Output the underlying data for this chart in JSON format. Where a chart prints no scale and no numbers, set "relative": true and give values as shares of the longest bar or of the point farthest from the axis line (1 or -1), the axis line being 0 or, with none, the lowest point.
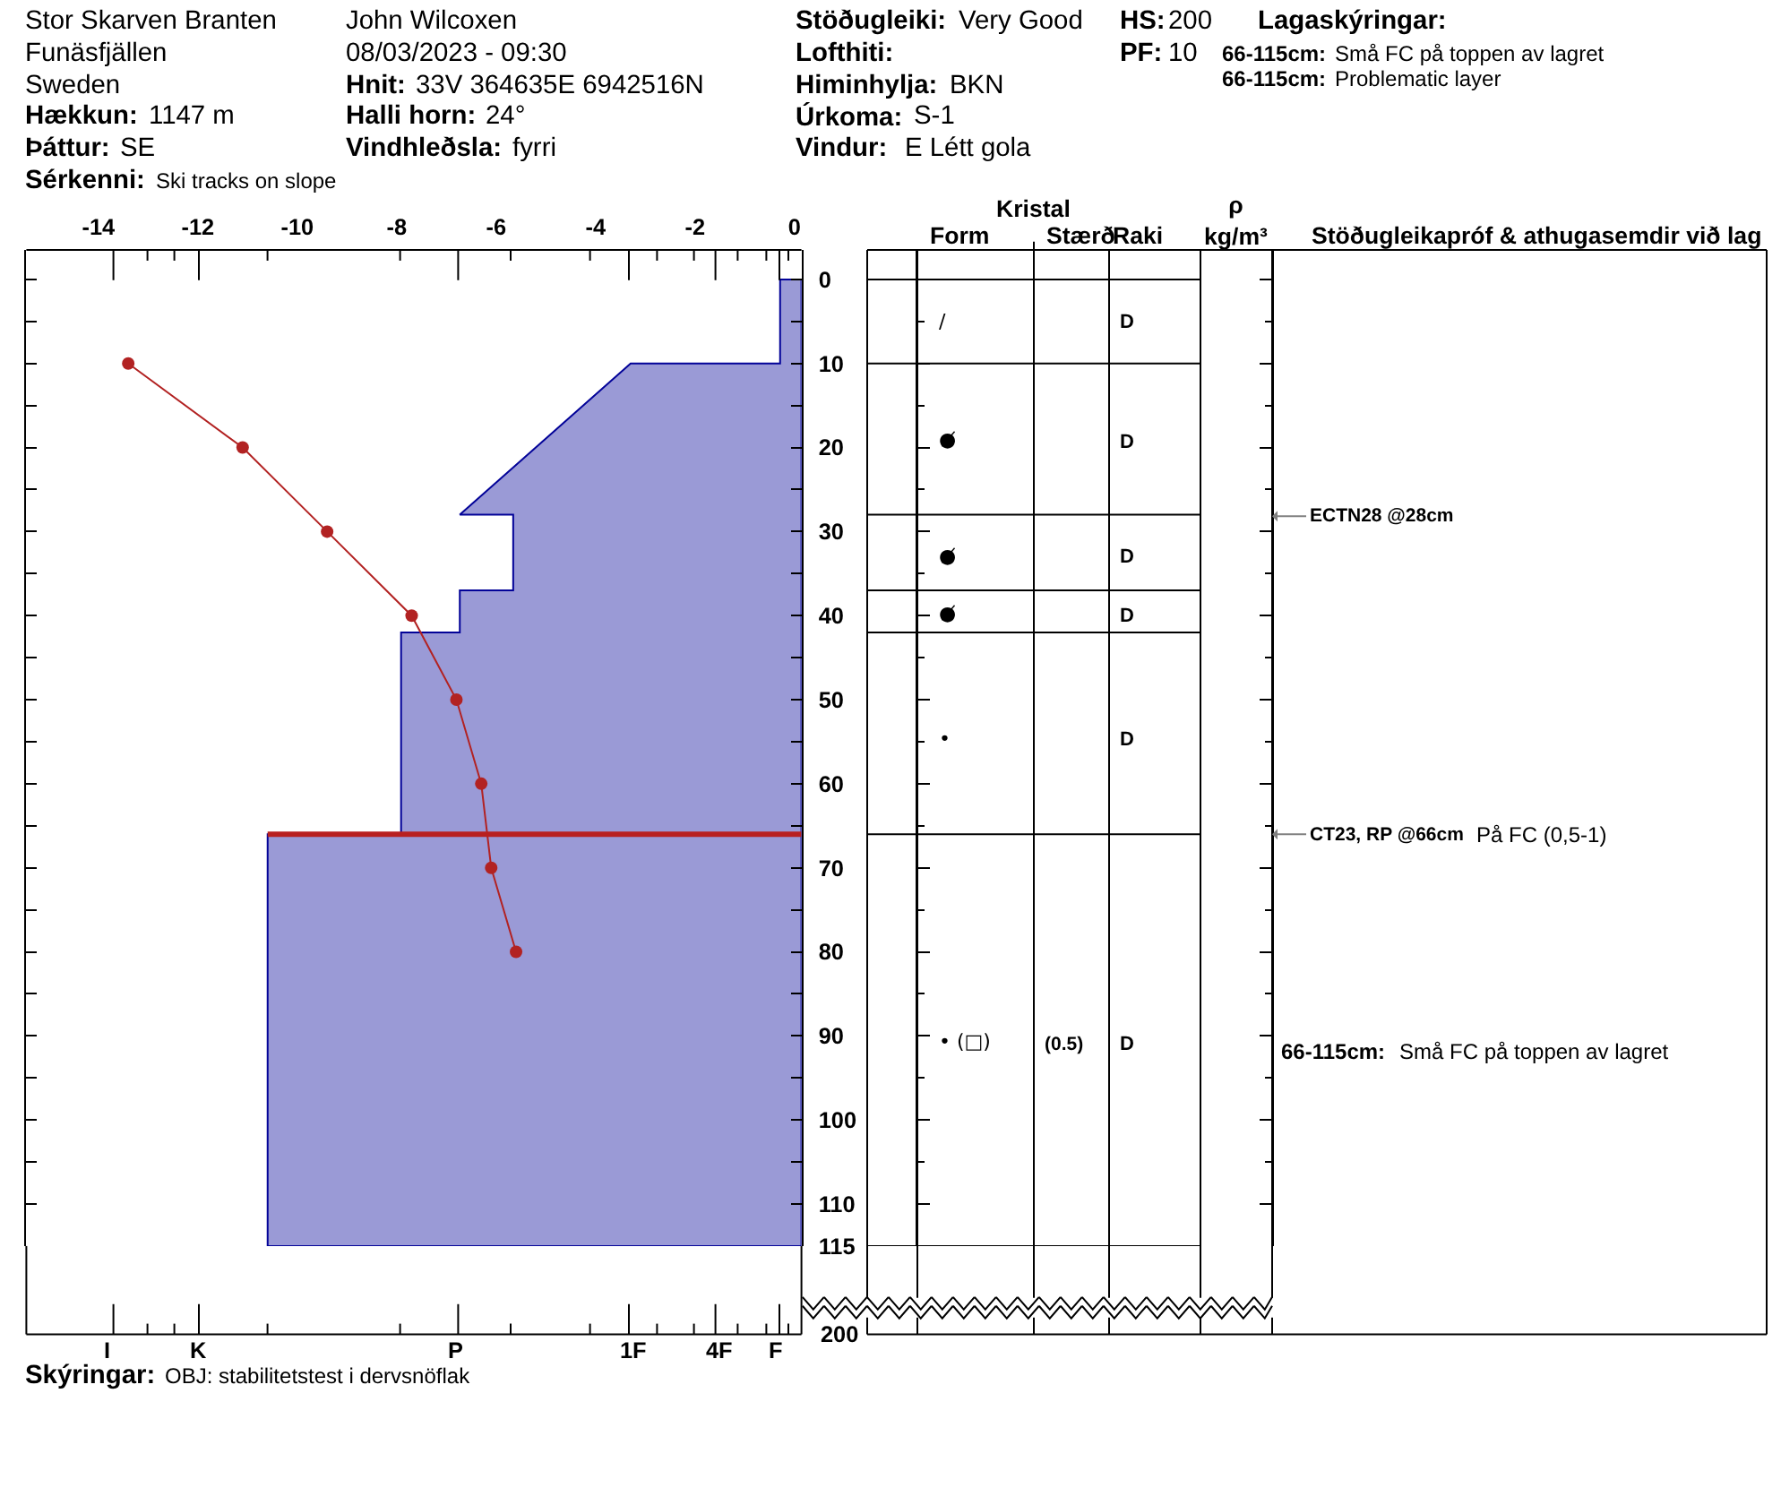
{
  "chart_data": [
    {
      "type": "area",
      "orientation": "horizontal",
      "relative": true,
      "series": [
        {
          "type": "area",
          "color": "#9a9ad6",
          "x": [
            0,
            10,
            10,
            28,
            28,
            37,
            37,
            42,
            42,
            66,
            66,
            115
          ],
          "values": [
            -0.04,
            -0.04,
            -0.32,
            -0.64,
            -0.54,
            -0.54,
            -0.64,
            -0.64,
            -0.75,
            -0.75,
            -1,
            -1
          ]
        }
      ],
      "ylim": [
        115,
        -3.5
      ],
      "yticks": [
        0,
        {
          "value": 5,
          "label": null
        },
        10,
        {
          "value": 15,
          "label": null
        },
        20,
        {
          "value": 25,
          "label": null
        },
        30,
        {
          "value": 35,
          "label": null
        },
        40,
        {
          "value": 45,
          "label": null
        },
        50,
        {
          "value": 55,
          "label": null
        },
        60,
        {
          "value": 65,
          "label": null
        },
        70,
        {
          "value": 75,
          "label": null
        },
        80,
        {
          "value": 85,
          "label": null
        },
        90,
        {
          "value": 95,
          "label": null
        },
        100,
        {
          "value": 105,
          "label": null
        },
        110,
        115
      ],
      "tick_labels": "y",
      "ref_lines": [
        {
          "axis": "y",
          "value": 66,
          "color": "#b82020"
        }
      ],
      "annotations": [
        "Stor Skarven Branten",
        "Funäsfjällen",
        "Sweden",
        "Hækkun:",
        "1147 m",
        "Þáttur:",
        "SE",
        "Sérkenni:",
        "Ski tracks on slope",
        "John Wilcoxen",
        "08/03/2023 - 09:30",
        "Hnit:",
        "33V 364635E 6942516N",
        "Halli horn:",
        "24°",
        "Vindhleðsla:",
        "fyrri",
        "Stöðugleiki:",
        "Very Good",
        "Lofthiti:",
        "Himinhylja:",
        "BKN",
        "Úrkoma:",
        "S-1",
        "Vindur:",
        "E Létt gola",
        "HS:",
        "200",
        "PF:",
        "10",
        "Lagaskýringar:",
        "66-115cm:",
        "Små FC på toppen av lagret",
        "66-115cm:",
        "Problematic layer",
        "Skýringar:",
        "OBJ: stabilitetstest i dervsnöflak",
        "I",
        "K",
        "P",
        "1F",
        "4F",
        "F",
        "200"
      ]
    },
    {
      "type": "line",
      "orientation": "horizontal",
      "series": [
        {
          "type": "line",
          "color": "#b22222",
          "marker": "circle",
          "x": [
            10,
            20,
            30,
            40,
            50,
            60,
            70,
            80
          ],
          "values": [
            -13.4,
            -11.1,
            -9.4,
            -7.7,
            -6.8,
            -6.3,
            -6.1,
            -5.6
          ]
        }
      ],
      "xlim": [
        -15.45,
        0.14
      ],
      "xticks": [
        -14,
        -12,
        -10,
        -8,
        -6,
        -4,
        -2,
        0
      ],
      "ylim": [
        115,
        -3.5
      ],
      "tick_labels": "x"
    },
    {
      "type": "other",
      "categories": [
        null,
        "Form",
        "Stærð",
        "Raki",
        "ρ\nkg/m³",
        "Stöðugleikapróf & athugasemdir við lag"
      ],
      "annotations": [
        "Kristal",
        "/",
        "●̸",
        "●̸",
        "●̸",
        "•",
        "• (□)",
        "(0.5)",
        "D",
        "D",
        "D",
        "D",
        "D",
        "D",
        "ECTN28 @28cm",
        "CT23, RP @66cm",
        "På FC (0,5-1)",
        "66-115cm:",
        "Små FC på toppen av lagret"
      ]
    }
  ]
}
